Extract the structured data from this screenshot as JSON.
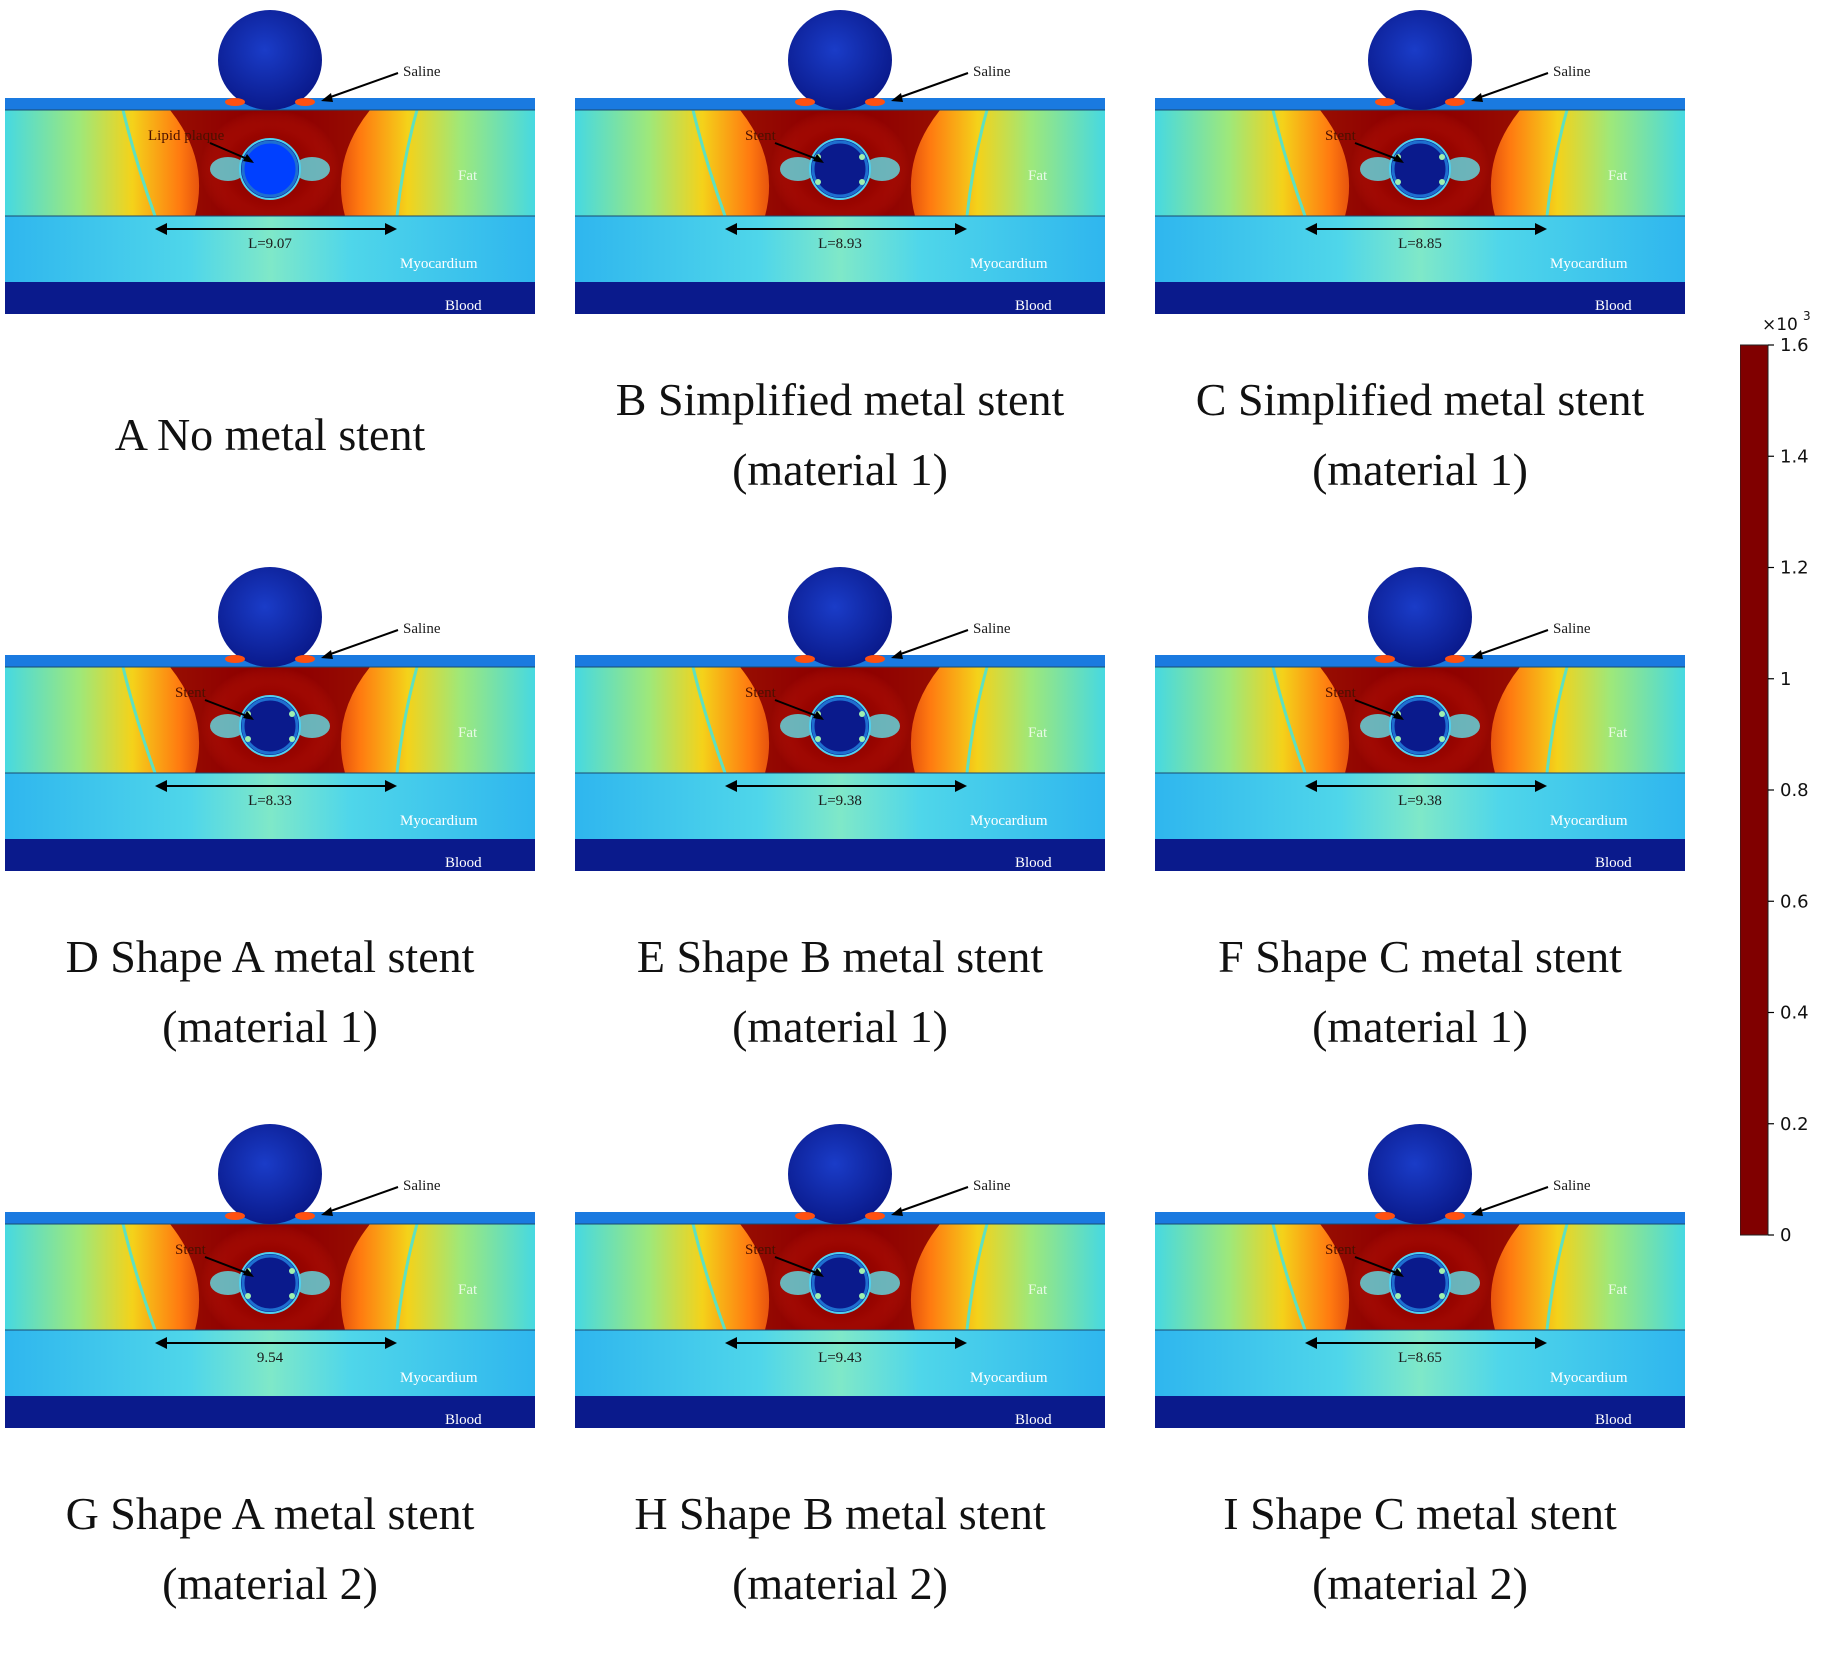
{
  "panels": [
    {
      "caption_line1": "A No metal stent",
      "caption_line2": "",
      "inner_label": "Lipid plaque",
      "length_label": "L=9.07",
      "saline": "Saline",
      "fat": "Fat",
      "myocardium": "Myocardium",
      "blood": "Blood",
      "metal_stent": false
    },
    {
      "caption_line1": "B Simplified metal stent",
      "caption_line2": "(material 1)",
      "inner_label": "Stent",
      "length_label": "L=8.93",
      "saline": "Saline",
      "fat": "Fat",
      "myocardium": "Myocardium",
      "blood": "Blood",
      "metal_stent": true
    },
    {
      "caption_line1": "C Simplified metal stent",
      "caption_line2": "(material 1)",
      "inner_label": "Stent",
      "length_label": "L=8.85",
      "saline": "Saline",
      "fat": "Fat",
      "myocardium": "Myocardium",
      "blood": "Blood",
      "metal_stent": true
    },
    {
      "caption_line1": "D Shape A metal stent",
      "caption_line2": "(material 1)",
      "inner_label": "Stent",
      "length_label": "L=8.33",
      "saline": "Saline",
      "fat": "Fat",
      "myocardium": "Myocardium",
      "blood": "Blood",
      "metal_stent": true
    },
    {
      "caption_line1": "E Shape B metal stent",
      "caption_line2": "(material 1)",
      "inner_label": "Stent",
      "length_label": "L=9.38",
      "saline": "Saline",
      "fat": "Fat",
      "myocardium": "Myocardium",
      "blood": "Blood",
      "metal_stent": true
    },
    {
      "caption_line1": "F Shape C metal stent",
      "caption_line2": "(material 1)",
      "inner_label": "Stent",
      "length_label": "L=9.38",
      "saline": "Saline",
      "fat": "Fat",
      "myocardium": "Myocardium",
      "blood": "Blood",
      "metal_stent": true
    },
    {
      "caption_line1": "G Shape A metal stent",
      "caption_line2": "(material 2)",
      "inner_label": "Stent",
      "length_label": "9.54",
      "saline": "Saline",
      "fat": "Fat",
      "myocardium": "Myocardium",
      "blood": "Blood",
      "metal_stent": true
    },
    {
      "caption_line1": "H Shape B metal stent",
      "caption_line2": "(material 2)",
      "inner_label": "Stent",
      "length_label": "L=9.43",
      "saline": "Saline",
      "fat": "Fat",
      "myocardium": "Myocardium",
      "blood": "Blood",
      "metal_stent": true
    },
    {
      "caption_line1": "I Shape C metal stent",
      "caption_line2": "(material 2)",
      "inner_label": "Stent",
      "length_label": "L=8.65",
      "saline": "Saline",
      "fat": "Fat",
      "myocardium": "Myocardium",
      "blood": "Blood",
      "metal_stent": true
    }
  ],
  "colorbar": {
    "multiplier": "×10",
    "multiplier_exponent": "3",
    "ticks": [
      "0",
      "0.2",
      "0.4",
      "0.6",
      "0.8",
      "1",
      "1.2",
      "1.4",
      "1.6"
    ],
    "min": 0,
    "max": 1.6,
    "colormap": [
      "#00008f",
      "#0000ff",
      "#0080ff",
      "#00ffff",
      "#80ff80",
      "#ffff00",
      "#ff8000",
      "#ff0000",
      "#800000"
    ]
  },
  "colors": {
    "blood": "#0a1a8c",
    "myocardium": "#3bc8ee",
    "fat_outer": "#46d9e2",
    "hot": "#8b0000",
    "electrode": "#0f2aa8"
  }
}
